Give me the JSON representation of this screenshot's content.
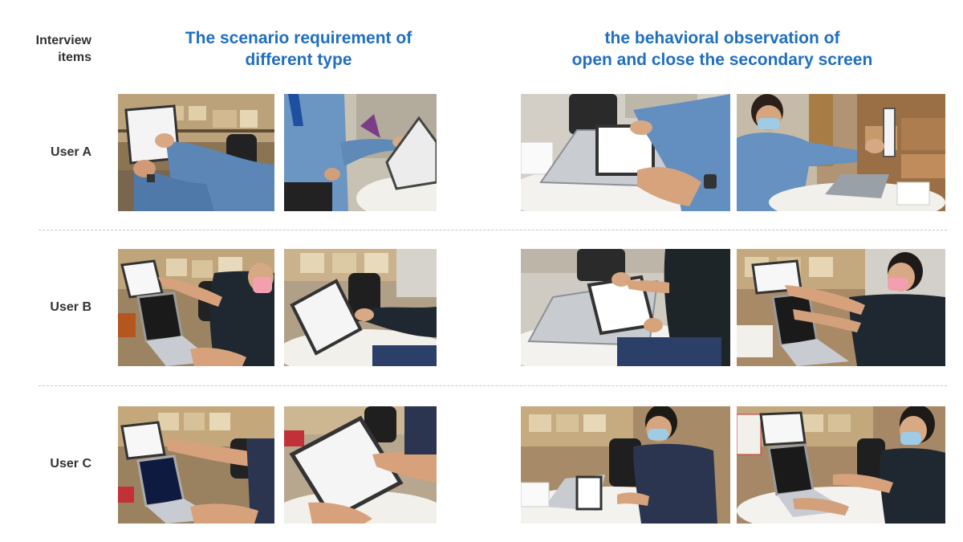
{
  "header": {
    "corner_line1": "Interview",
    "corner_line2": "items",
    "col1_line1": "The scenario requirement of",
    "col1_line2": "different type",
    "col2_line1": "the behavioral observation of",
    "col2_line2": "open and close the secondary screen"
  },
  "rows": [
    {
      "label": "User A"
    },
    {
      "label": "User B"
    },
    {
      "label": "User  C"
    }
  ],
  "colors": {
    "title_blue": "#1f6fc0",
    "label_gray": "#333333",
    "divider": "#c8c8c8"
  }
}
